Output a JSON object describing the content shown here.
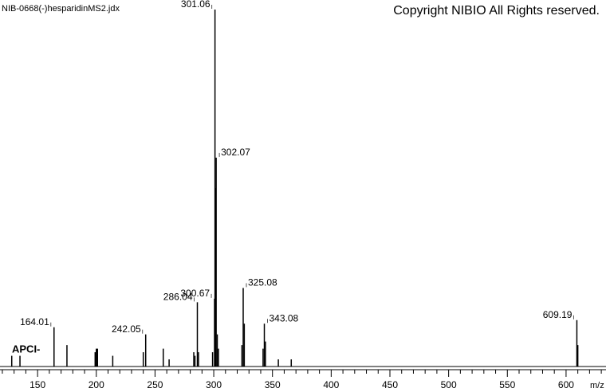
{
  "chart_data": {
    "type": "spectrum",
    "title": "NIB-0668(-)hesparidinMS2.jdx",
    "copyright": "Copyright NIBIO All Rights reserved.",
    "annotation": "APCI-",
    "x_label": "m/z",
    "xlim": [
      118,
      634
    ],
    "ylim": [
      0,
      100
    ],
    "xticks": [
      150,
      200,
      250,
      300,
      350,
      400,
      450,
      500,
      550,
      600
    ],
    "xticks_minor": [
      120,
      130,
      140,
      160,
      170,
      180,
      190,
      210,
      220,
      230,
      240,
      260,
      270,
      280,
      290,
      310,
      320,
      330,
      340,
      360,
      370,
      380,
      390,
      410,
      420,
      430,
      440,
      460,
      470,
      480,
      490,
      510,
      520,
      530,
      540,
      560,
      570,
      580,
      590,
      610,
      620,
      630
    ],
    "color": "#000000",
    "series": [
      {
        "x": [
          164.01,
          242.05,
          286.04,
          300.67,
          301.06,
          302.07,
          325.08,
          343.08,
          609.19
        ],
        "values": [
          11,
          9,
          18,
          19,
          100,
          58.5,
          22,
          12,
          13
        ],
        "show_labels": true,
        "label_side": [
          "left",
          "left",
          "left",
          "left",
          "left",
          "right",
          "right",
          "right",
          "left"
        ]
      },
      {
        "x": [
          128,
          135,
          175,
          199,
          200,
          201,
          214,
          240,
          257,
          262,
          283,
          284,
          287,
          299,
          301.5,
          303,
          304,
          324,
          326,
          342,
          344,
          355,
          366,
          610
        ],
        "values": [
          3,
          3,
          6,
          4,
          5,
          5,
          3,
          4,
          5,
          2,
          4,
          3,
          4,
          4,
          50,
          9,
          5,
          6,
          12,
          5,
          7,
          2,
          2,
          6
        ],
        "show_labels": false
      }
    ]
  }
}
